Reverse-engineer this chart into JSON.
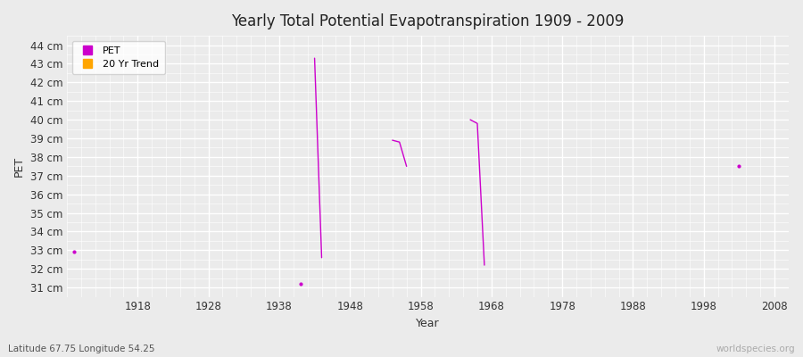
{
  "title": "Yearly Total Potential Evapotranspiration 1909 - 2009",
  "xlabel": "Year",
  "ylabel": "PET",
  "subtitle": "Latitude 67.75 Longitude 54.25",
  "watermark": "worldspecies.org",
  "xlim": [
    1908,
    2010
  ],
  "ylim": [
    30.5,
    44.5
  ],
  "yticks": [
    31,
    32,
    33,
    34,
    35,
    36,
    37,
    38,
    39,
    40,
    41,
    42,
    43,
    44
  ],
  "xticks": [
    1918,
    1928,
    1938,
    1948,
    1958,
    1968,
    1978,
    1988,
    1998,
    2008
  ],
  "pet_segments": [
    [
      [
        1909,
        32.9
      ]
    ],
    [
      [
        1941,
        31.2
      ]
    ],
    [
      [
        1943,
        43.3
      ],
      [
        1944,
        32.6
      ]
    ],
    [
      [
        1954,
        38.9
      ],
      [
        1955,
        38.8
      ],
      [
        1956,
        37.5
      ]
    ],
    [
      [
        1965,
        40.0
      ],
      [
        1966,
        39.8
      ],
      [
        1967,
        32.2
      ]
    ],
    [
      [
        2003,
        37.5
      ]
    ]
  ],
  "pet_color": "#cc00cc",
  "trend_color": "#ffa500",
  "background_color": "#ebebeb",
  "plot_bg_color": "#ebebeb",
  "legend_entries": [
    "PET",
    "20 Yr Trend"
  ]
}
